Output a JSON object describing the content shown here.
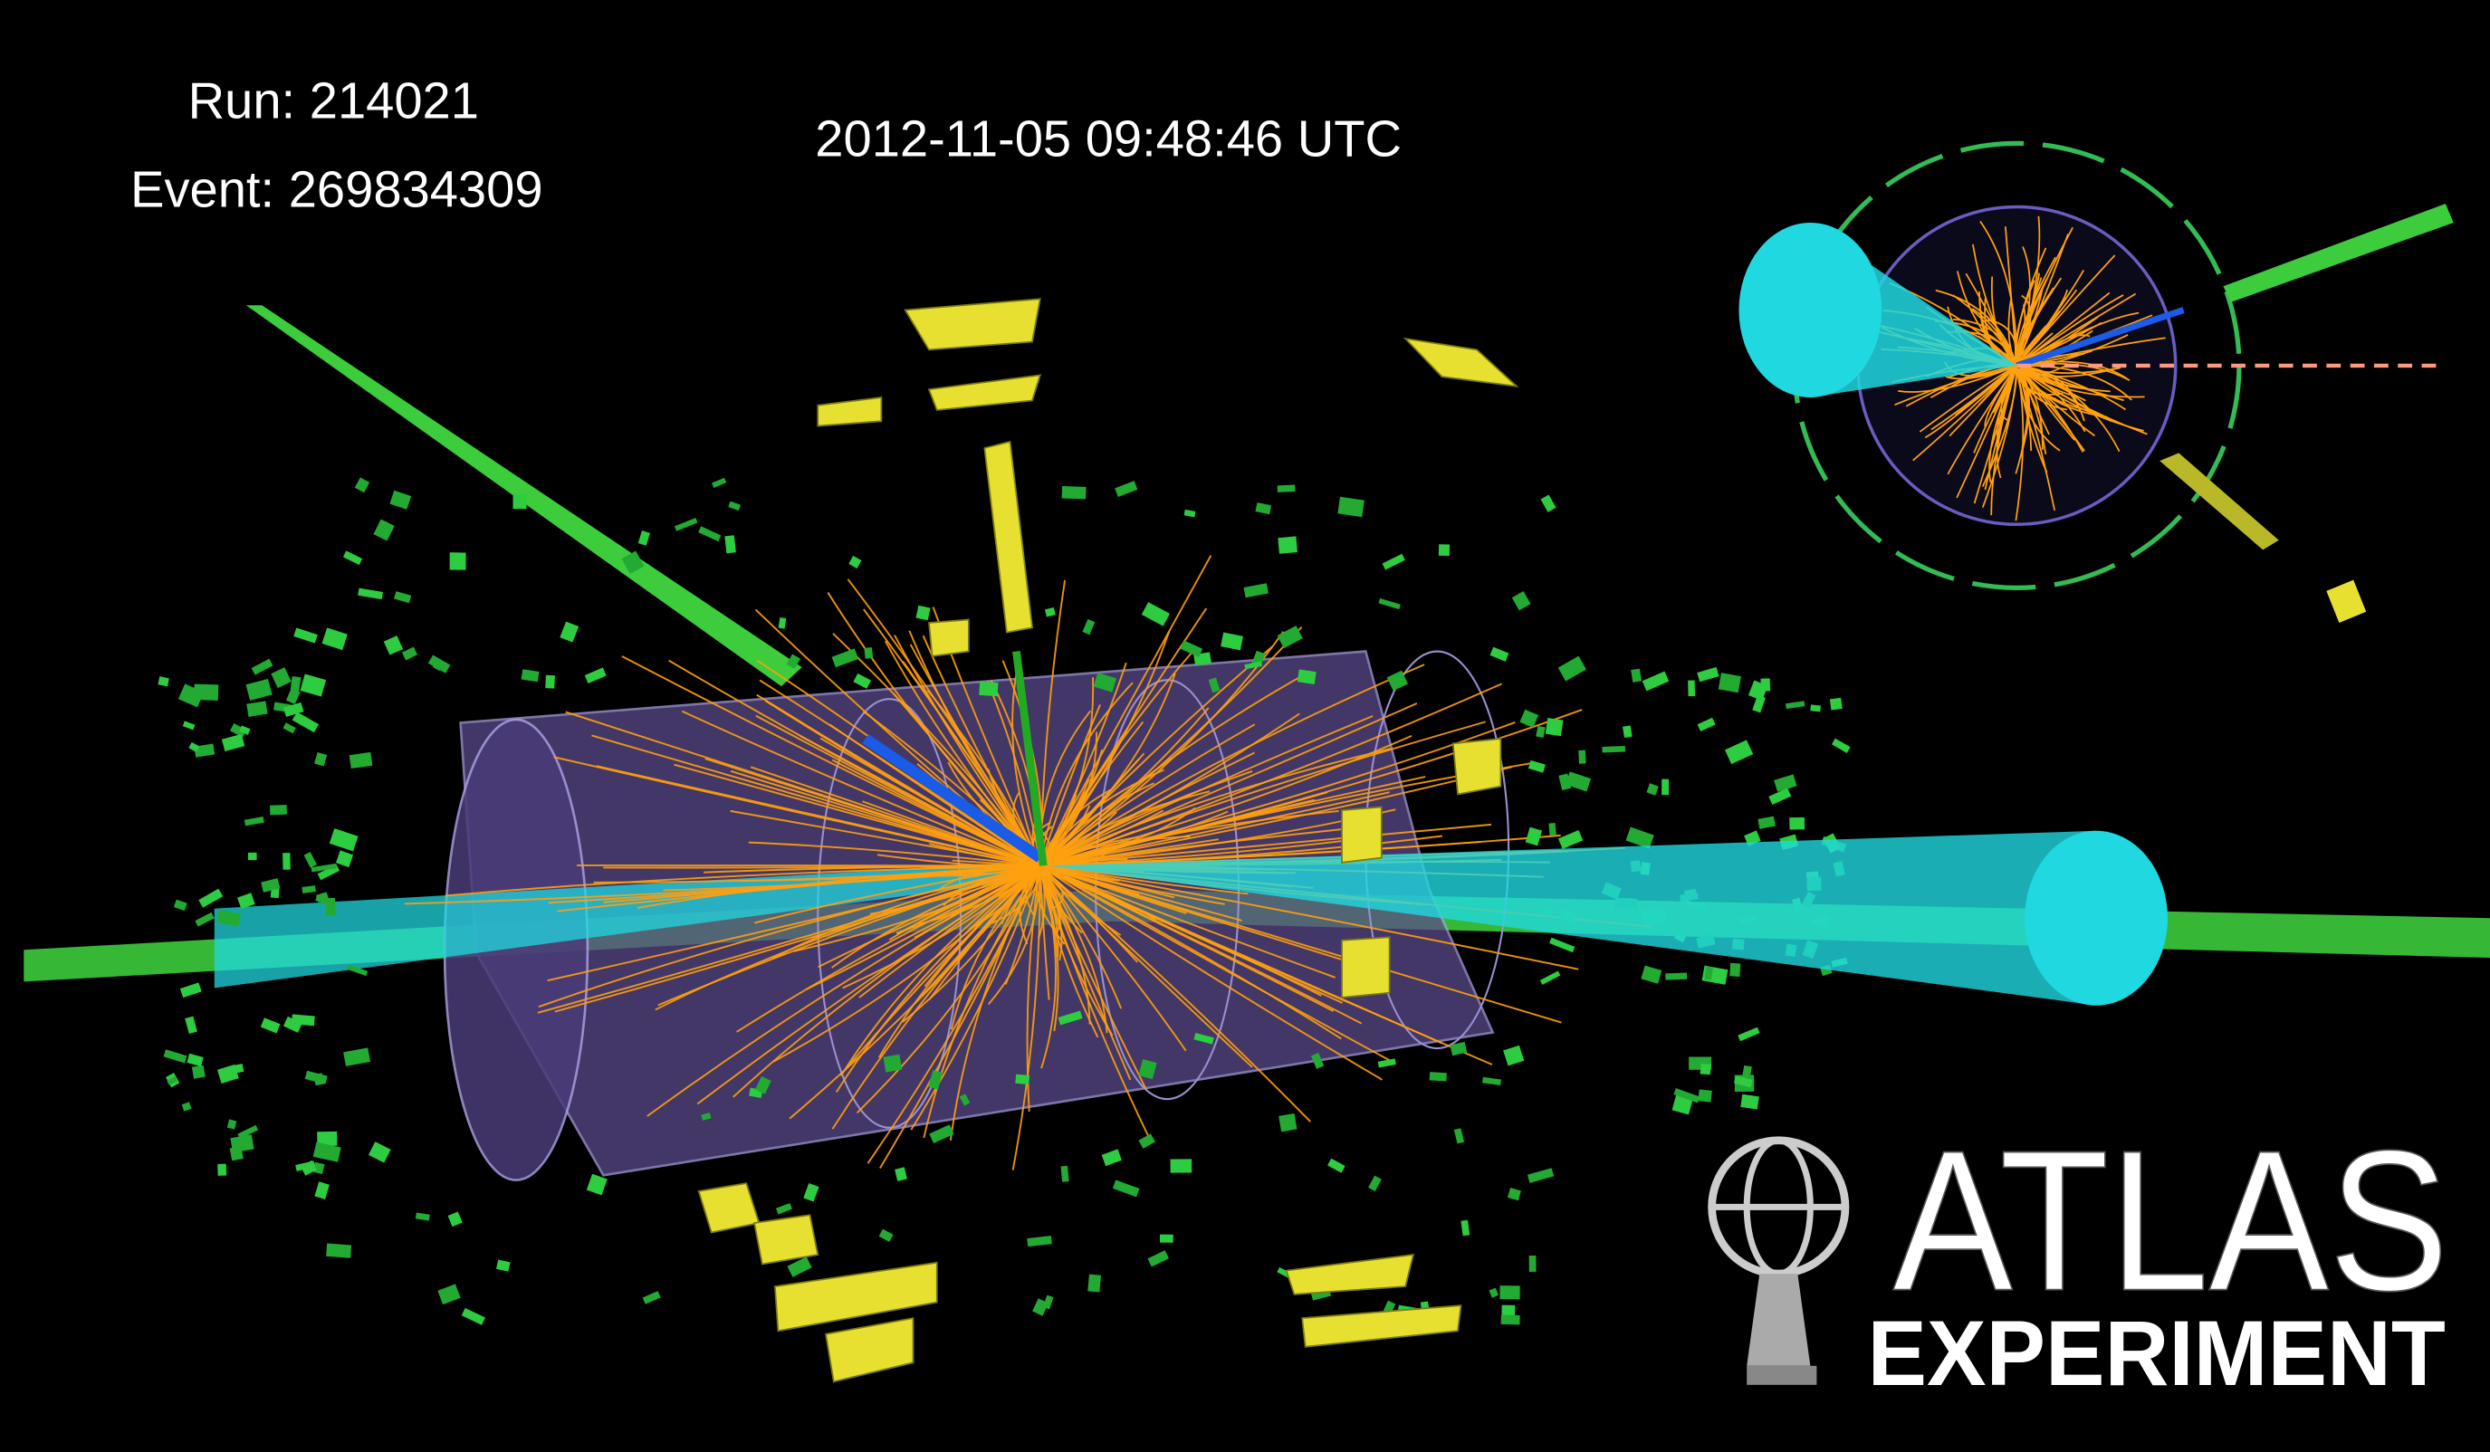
{
  "header": {
    "run": "Run: 214021",
    "event": "Event: 269834309",
    "timestamp": "2012-11-05 09:48:46 UTC"
  },
  "logo": {
    "title": "ATLAS",
    "subtitle": "EXPERIMENT"
  }
}
